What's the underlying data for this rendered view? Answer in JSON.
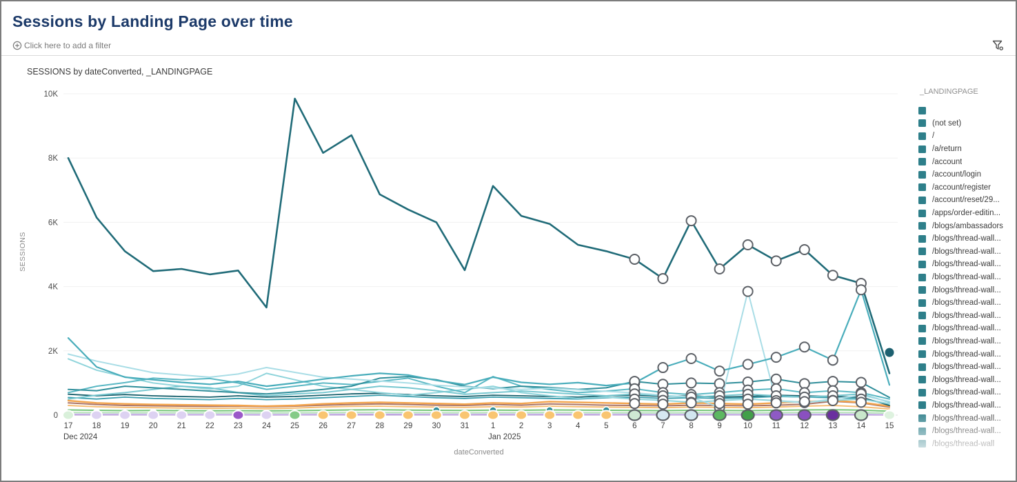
{
  "header": {
    "title": "Sessions by Landing Page over time"
  },
  "filter_bar": {
    "add_filter_label": "Click here to add a filter",
    "add_icon": "plus-circle-icon",
    "filter_icon": "funnel-settings-icon"
  },
  "chart": {
    "title": "SESSIONS by dateConverted, _LANDINGPAGE"
  },
  "legend": {
    "title": "_LANDINGPAGE",
    "swatch_color": "#2e7f8a",
    "items": [
      {
        "label": ""
      },
      {
        "label": "(not set)"
      },
      {
        "label": "/"
      },
      {
        "label": "/a/return"
      },
      {
        "label": "/account"
      },
      {
        "label": "/account/login"
      },
      {
        "label": "/account/register"
      },
      {
        "label": "/account/reset/29..."
      },
      {
        "label": "/apps/order-editin..."
      },
      {
        "label": "/blogs/ambassadors"
      },
      {
        "label": "/blogs/thread-wall..."
      },
      {
        "label": "/blogs/thread-wall..."
      },
      {
        "label": "/blogs/thread-wall..."
      },
      {
        "label": "/blogs/thread-wall..."
      },
      {
        "label": "/blogs/thread-wall..."
      },
      {
        "label": "/blogs/thread-wall..."
      },
      {
        "label": "/blogs/thread-wall..."
      },
      {
        "label": "/blogs/thread-wall..."
      },
      {
        "label": "/blogs/thread-wall..."
      },
      {
        "label": "/blogs/thread-wall..."
      },
      {
        "label": "/blogs/thread-wall..."
      },
      {
        "label": "/blogs/thread-wall..."
      },
      {
        "label": "/blogs/thread-wall..."
      },
      {
        "label": "/blogs/thread-wall..."
      },
      {
        "label": "/blogs/thread-wall..."
      },
      {
        "label": "/blogs/thread-wall..."
      },
      {
        "label": "/blogs/thread-wall"
      }
    ]
  },
  "chart_data": {
    "type": "line",
    "title": "SESSIONS by dateConverted, _LANDINGPAGE",
    "xlabel": "dateConverted",
    "ylabel": "SESSIONS",
    "ylim": [
      0,
      10000
    ],
    "grid": true,
    "legend_position": "right",
    "yticks": [
      {
        "value": 0,
        "label": "0"
      },
      {
        "value": 2000,
        "label": "2K"
      },
      {
        "value": 4000,
        "label": "4K"
      },
      {
        "value": 6000,
        "label": "6K"
      },
      {
        "value": 8000,
        "label": "8K"
      },
      {
        "value": 10000,
        "label": "10K"
      }
    ],
    "x_labels": [
      "17",
      "18",
      "19",
      "20",
      "21",
      "22",
      "23",
      "24",
      "25",
      "26",
      "27",
      "28",
      "29",
      "30",
      "31",
      "1",
      "2",
      "3",
      "4",
      "5",
      "6",
      "7",
      "8",
      "9",
      "10",
      "11",
      "12",
      "13",
      "14",
      "15"
    ],
    "month_labels": [
      {
        "index": 0,
        "label": "Dec 2024"
      },
      {
        "index": 15,
        "label": "Jan 2025"
      }
    ],
    "highlight_range": [
      20,
      28
    ],
    "series": [
      {
        "name": "(not set)",
        "color": "#206b78",
        "width": 2.6,
        "ring": true,
        "values": [
          8000,
          6150,
          5100,
          4480,
          4550,
          4380,
          4500,
          3350,
          9850,
          8160,
          8710,
          6870,
          6400,
          6000,
          4510,
          7130,
          6200,
          5950,
          5300,
          5100,
          4850,
          4250,
          6050,
          4550,
          5300,
          4800,
          5150,
          4350,
          4100,
          1300
        ]
      },
      {
        "name": "/",
        "color": "#49adbb",
        "width": 2.2,
        "ring": true,
        "values": [
          2400,
          1500,
          1180,
          1100,
          1020,
          960,
          1050,
          900,
          1000,
          1120,
          1220,
          1300,
          1250,
          1080,
          950,
          1180,
          1020,
          960,
          1010,
          920,
          1000,
          1480,
          1760,
          1370,
          1580,
          1800,
          2120,
          1710,
          3900,
          940
        ]
      },
      {
        "name": "/a/return",
        "color": "#a9dde6",
        "width": 2,
        "ring": true,
        "values": [
          1900,
          1680,
          1500,
          1320,
          1250,
          1180,
          1280,
          1480,
          1330,
          1180,
          1120,
          1060,
          1000,
          930,
          880,
          840,
          800,
          840,
          790,
          740,
          690,
          620,
          560,
          240,
          3850,
          430,
          390,
          500,
          620,
          420
        ]
      },
      {
        "name": "/account",
        "color": "#2f8e9a",
        "width": 2,
        "ring": true,
        "values": [
          800,
          760,
          900,
          850,
          800,
          750,
          700,
          660,
          720,
          800,
          900,
          1150,
          1200,
          1100,
          900,
          820,
          900,
          860,
          800,
          850,
          1050,
          960,
          1000,
          980,
          1030,
          1120,
          980,
          1050,
          1020,
          550
        ]
      },
      {
        "name": "/account/login",
        "color": "#5ab8c4",
        "width": 2,
        "ring": true,
        "values": [
          700,
          900,
          1010,
          1150,
          1100,
          1140,
          1000,
          800,
          900,
          1000,
          950,
          1050,
          1150,
          900,
          700,
          1200,
          900,
          800,
          700,
          750,
          820,
          700,
          640,
          700,
          780,
          820,
          700,
          760,
          700,
          500
        ]
      },
      {
        "name": "/account/register",
        "color": "#77c7d0",
        "width": 2,
        "ring": true,
        "values": [
          500,
          620,
          700,
          800,
          900,
          850,
          700,
          600,
          660,
          700,
          800,
          900,
          850,
          760,
          650,
          700,
          750,
          700,
          650,
          600,
          660,
          600,
          560,
          600,
          650,
          600,
          560,
          600,
          660,
          400
        ]
      },
      {
        "name": "/account/reset/29...",
        "color": "#8fd4db",
        "width": 2,
        "ring": true,
        "values": [
          1750,
          1400,
          1190,
          1000,
          900,
          810,
          900,
          1300,
          1100,
          900,
          800,
          700,
          620,
          700,
          800,
          900,
          700,
          600,
          520,
          560,
          500,
          460,
          400,
          450,
          500,
          450,
          400,
          460,
          500,
          350
        ]
      },
      {
        "name": "/apps/order-editin...",
        "color": "#175f6b",
        "width": 1.8,
        "ring": false,
        "values": [
          650,
          600,
          640,
          600,
          580,
          560,
          600,
          560,
          580,
          620,
          660,
          680,
          640,
          600,
          580,
          620,
          600,
          580,
          560,
          600,
          620,
          580,
          600,
          560,
          580,
          620,
          600,
          580,
          560,
          300
        ]
      },
      {
        "name": "/blogs/ambassadors",
        "color": "#f3a44c",
        "width": 2.4,
        "ring": true,
        "values": [
          450,
          380,
          350,
          330,
          320,
          310,
          300,
          280,
          300,
          350,
          380,
          400,
          380,
          360,
          340,
          380,
          360,
          420,
          400,
          380,
          360,
          340,
          380,
          360,
          340,
          380,
          420,
          450,
          400,
          280
        ]
      },
      {
        "name": "/blogs/thread-wall...",
        "color": "#f6bd74",
        "width": 2,
        "ring": false,
        "values": [
          300,
          260,
          240,
          230,
          220,
          210,
          220,
          200,
          220,
          250,
          270,
          280,
          260,
          250,
          240,
          260,
          250,
          280,
          260,
          250,
          240,
          230,
          250,
          240,
          230,
          250,
          280,
          300,
          260,
          190
        ]
      },
      {
        "name": "/blogs/thread-wall...",
        "color": "#ab7568",
        "width": 2,
        "ring": false,
        "values": [
          380,
          330,
          300,
          290,
          280,
          270,
          280,
          260,
          280,
          310,
          330,
          350,
          330,
          310,
          300,
          330,
          310,
          350,
          330,
          310,
          300,
          290,
          310,
          300,
          290,
          310,
          340,
          430,
          380,
          250
        ]
      },
      {
        "name": "/blogs/thread-wall...",
        "color": "#74c578",
        "width": 2,
        "ring": false,
        "values": [
          160,
          150,
          140,
          145,
          140,
          135,
          140,
          130,
          140,
          150,
          160,
          165,
          155,
          150,
          145,
          155,
          150,
          160,
          155,
          150,
          145,
          140,
          150,
          145,
          140,
          150,
          160,
          165,
          155,
          120
        ]
      },
      {
        "name": "/blogs/thread-wall...",
        "color": "#b8e4ba",
        "width": 2,
        "ring": false,
        "values": [
          80,
          78,
          75,
          73,
          72,
          70,
          72,
          68,
          72,
          76,
          80,
          82,
          78,
          76,
          73,
          78,
          76,
          80,
          78,
          76,
          73,
          70,
          76,
          73,
          70,
          76,
          80,
          82,
          78,
          60
        ]
      },
      {
        "name": "/blogs/thread-wall...",
        "color": "#d8cbf0",
        "width": 2,
        "ring": false,
        "values": [
          35,
          33,
          32,
          31,
          30,
          30,
          31,
          29,
          31,
          33,
          35,
          36,
          34,
          33,
          32,
          34,
          33,
          35,
          34,
          33,
          32,
          31,
          33,
          32,
          31,
          33,
          35,
          36,
          34,
          26
        ]
      },
      {
        "name": "/blogs/thread-wall...",
        "color": "#9668c8",
        "width": 1.6,
        "ring": false,
        "values": [
          12,
          11,
          11,
          10,
          10,
          10,
          10,
          9,
          10,
          11,
          12,
          12,
          11,
          11,
          10,
          11,
          11,
          12,
          11,
          11,
          10,
          10,
          11,
          10,
          10,
          11,
          12,
          12,
          11,
          8
        ]
      },
      {
        "name": "/blogs/thread-wall...",
        "color": "#3a9fae",
        "width": 1.8,
        "ring": false,
        "values": [
          550,
          500,
          560,
          520,
          500,
          480,
          520,
          480,
          500,
          540,
          580,
          620,
          580,
          540,
          520,
          560,
          540,
          520,
          500,
          540,
          560,
          520,
          540,
          520,
          540,
          580,
          560,
          540,
          520,
          350
        ]
      }
    ],
    "axis_markers": [
      {
        "label": "17",
        "color": "#d9f0da",
        "ring": false
      },
      {
        "label": "18",
        "color": "#ddd2f2",
        "ring": false
      },
      {
        "label": "19",
        "color": "#ddd2f2",
        "ring": false
      },
      {
        "label": "20",
        "color": "#ddd2f2",
        "ring": false
      },
      {
        "label": "21",
        "color": "#ddd2f2",
        "ring": false
      },
      {
        "label": "22",
        "color": "#ddd2f2",
        "ring": false
      },
      {
        "label": "23",
        "color": "#9b59c9",
        "ring": false
      },
      {
        "label": "24",
        "color": "#ddd2f2",
        "ring": false
      },
      {
        "label": "25",
        "color": "#85cb88",
        "ring": false
      },
      {
        "label": "26",
        "color": "#f9c571",
        "ring": false
      },
      {
        "label": "27",
        "color": "#f9c571",
        "ring": false
      },
      {
        "label": "28",
        "color": "#f9c571",
        "ring": false
      },
      {
        "label": "29",
        "color": "#f9c571",
        "ring": false
      },
      {
        "label": "30",
        "color": "#f9c571",
        "ring": false
      },
      {
        "label": "31",
        "color": "#f9c571",
        "ring": false
      },
      {
        "label": "1",
        "color": "#f9c571",
        "ring": false
      },
      {
        "label": "2",
        "color": "#f9c571",
        "ring": false
      },
      {
        "label": "3",
        "color": "#f9c571",
        "ring": false
      },
      {
        "label": "4",
        "color": "#f9c571",
        "ring": false
      },
      {
        "label": "5",
        "color": "#f9c571",
        "ring": false
      },
      {
        "label": "6",
        "color": "#cfe9d4",
        "ring": true
      },
      {
        "label": "7",
        "color": "#d6e8f2",
        "ring": true
      },
      {
        "label": "8",
        "color": "#d2e6f0",
        "ring": true
      },
      {
        "label": "9",
        "color": "#5cb861",
        "ring": true
      },
      {
        "label": "10",
        "color": "#42a049",
        "ring": true
      },
      {
        "label": "11",
        "color": "#8e5ac4",
        "ring": true
      },
      {
        "label": "12",
        "color": "#8a50c0",
        "ring": true
      },
      {
        "label": "13",
        "color": "#6a2f9f",
        "ring": true
      },
      {
        "label": "14",
        "color": "#c9e8cb",
        "ring": true
      },
      {
        "label": "15",
        "color": "#def2df",
        "ring": false
      }
    ],
    "extra_markers": [
      {
        "index": 1,
        "value": 70,
        "color": "#85cb88"
      },
      {
        "index": 3,
        "value": 70,
        "color": "#85cb88"
      },
      {
        "index": 13,
        "value": 150,
        "color": "#2f8e9a"
      },
      {
        "index": 15,
        "value": 150,
        "color": "#2f8e9a"
      },
      {
        "index": 17,
        "value": 150,
        "color": "#2f8e9a"
      },
      {
        "index": 19,
        "value": 150,
        "color": "#2f8e9a"
      },
      {
        "index": 29,
        "value": 60,
        "color": "#a9dde6"
      }
    ],
    "isolated_point": {
      "index": 29,
      "value": 1950,
      "color": "#1d6070"
    }
  }
}
